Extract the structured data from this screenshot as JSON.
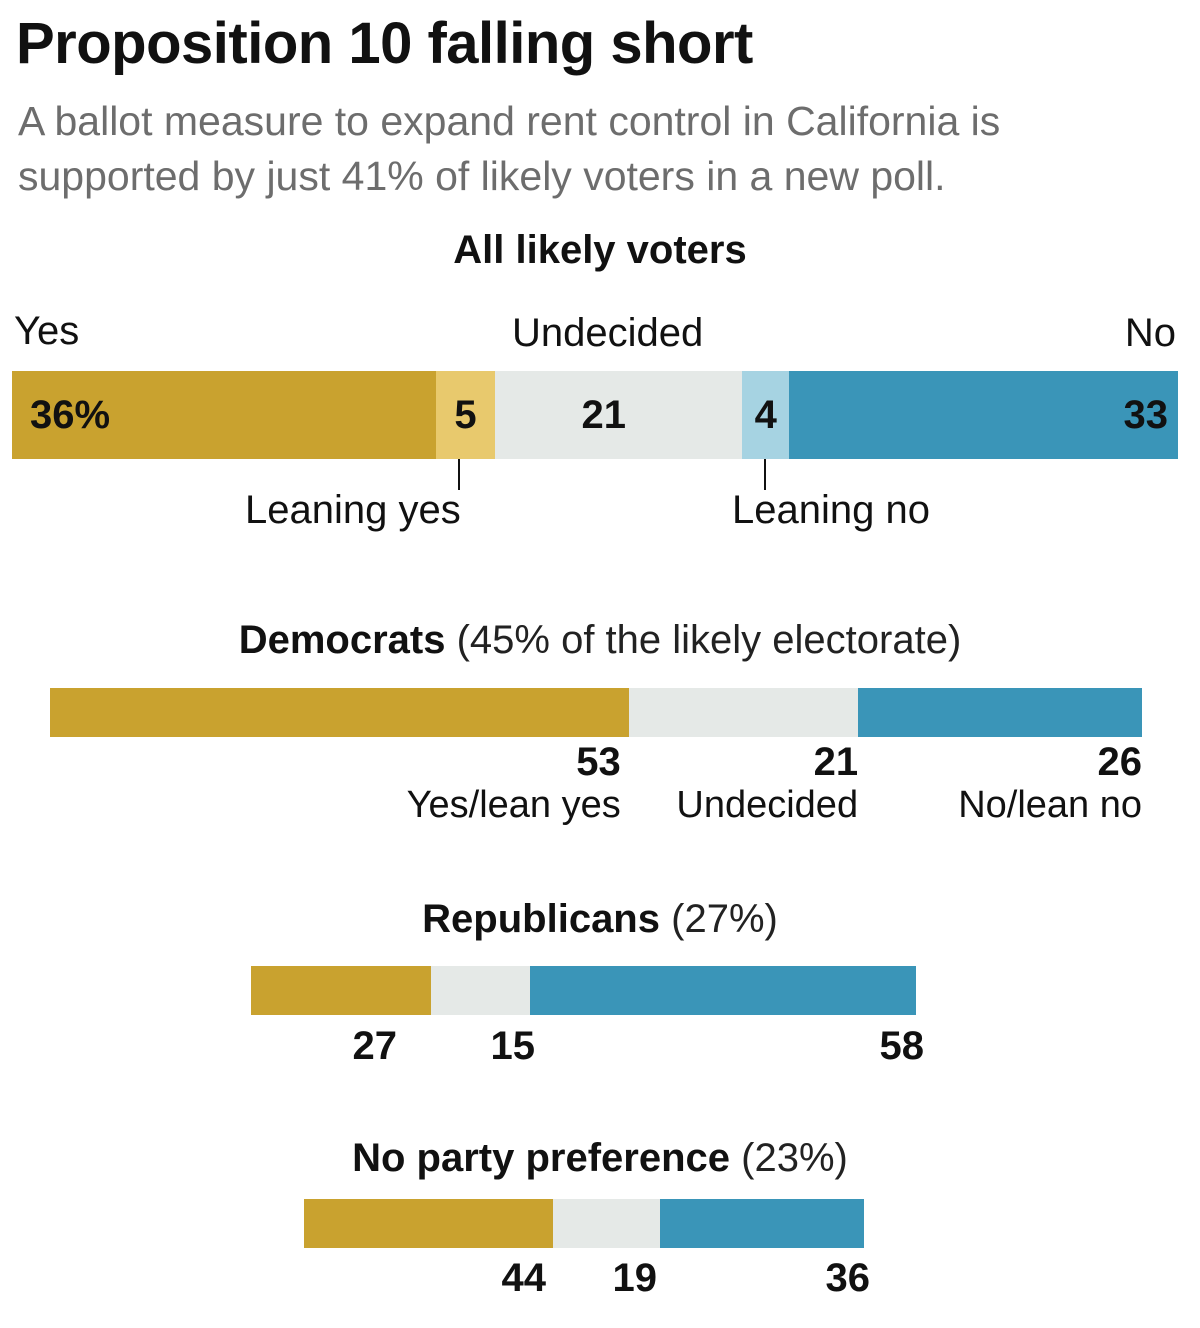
{
  "title": "Proposition 10 falling short",
  "subtitle": "A ballot measure to expand rent control in California is supported by just 41% of likely voters in a new poll.",
  "colors": {
    "yes": "#c9a22f",
    "lean_yes": "#e8c96d",
    "undecided": "#e5e9e7",
    "lean_no": "#a6d3e2",
    "no": "#3a95b8"
  },
  "chart_data": [
    {
      "type": "bar",
      "orientation": "horizontal-stacked",
      "title": "All likely voters",
      "categories": [
        "Yes",
        "Leaning yes",
        "Undecided",
        "Leaning no",
        "No"
      ],
      "values": [
        36,
        5,
        21,
        4,
        33
      ],
      "value_labels": [
        "36%",
        "5",
        "21",
        "4",
        "33"
      ],
      "top_labels": {
        "yes": "Yes",
        "undecided": "Undecided",
        "no": "No"
      },
      "bottom_labels": {
        "lean_yes": "Leaning yes",
        "lean_no": "Leaning no"
      }
    },
    {
      "type": "bar",
      "orientation": "horizontal-stacked",
      "title": "Democrats",
      "title_note": "(45% of the likely electorate)",
      "categories": [
        "Yes/lean yes",
        "Undecided",
        "No/lean no"
      ],
      "values": [
        53,
        21,
        26
      ],
      "value_labels": [
        "53",
        "21",
        "26"
      ]
    },
    {
      "type": "bar",
      "orientation": "horizontal-stacked",
      "title": "Republicans",
      "title_note": "(27%)",
      "categories": [
        "Yes/lean yes",
        "Undecided",
        "No/lean no"
      ],
      "values": [
        27,
        15,
        58
      ],
      "value_labels": [
        "27",
        "15",
        "58"
      ]
    },
    {
      "type": "bar",
      "orientation": "horizontal-stacked",
      "title": "No party preference",
      "title_note": "(23%)",
      "categories": [
        "Yes/lean yes",
        "Undecided",
        "No/lean no"
      ],
      "values": [
        44,
        19,
        36
      ],
      "value_labels": [
        "44",
        "19",
        "36"
      ]
    }
  ]
}
